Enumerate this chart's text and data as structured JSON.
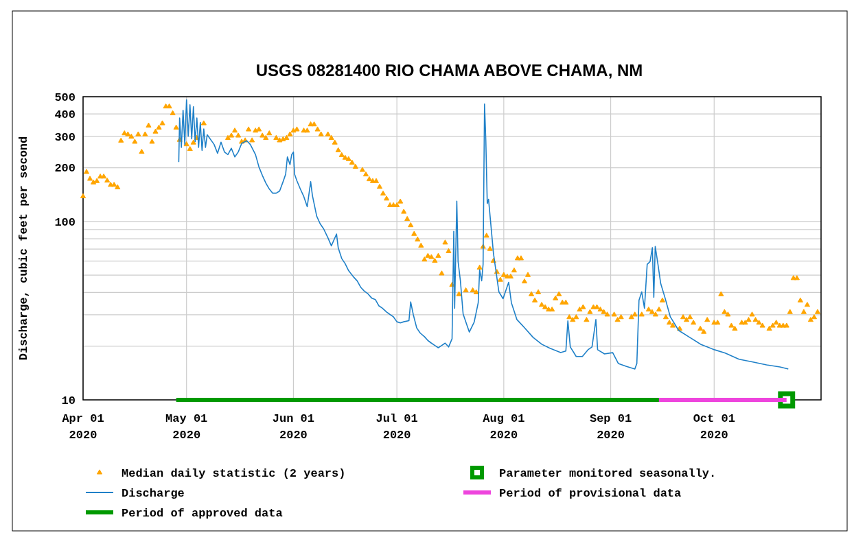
{
  "chart_data": {
    "type": "line",
    "title": "USGS 08281400 RIO CHAMA ABOVE CHAMA, NM",
    "ylabel": "Discharge, cubic feet per second",
    "xlim": [
      "2020-04-01",
      "2020-11-01"
    ],
    "xticks": [
      {
        "value": "2020-04-01",
        "label": "Apr 01\n2020"
      },
      {
        "value": "2020-05-01",
        "label": "May 01\n2020"
      },
      {
        "value": "2020-06-01",
        "label": "Jun 01\n2020"
      },
      {
        "value": "2020-07-01",
        "label": "Jul 01\n2020"
      },
      {
        "value": "2020-08-01",
        "label": "Aug 01\n2020"
      },
      {
        "value": "2020-09-01",
        "label": "Sep 01\n2020"
      },
      {
        "value": "2020-10-01",
        "label": "Oct 01\n2020"
      }
    ],
    "ylim": [
      10,
      500
    ],
    "log": true,
    "yticks": [
      10,
      {
        "value": 20,
        "label": null
      },
      {
        "value": 30,
        "label": null
      },
      {
        "value": 40,
        "label": null
      },
      {
        "value": 50,
        "label": null
      },
      {
        "value": 60,
        "label": null
      },
      {
        "value": 70,
        "label": null
      },
      {
        "value": 80,
        "label": null
      },
      {
        "value": 90,
        "label": null
      },
      100,
      200,
      300,
      400,
      500
    ],
    "grid": true,
    "legend": "bottom",
    "series": [
      {
        "name": "Median daily statistic (2 years)",
        "type": "scatter",
        "marker": "triangle",
        "color": "#ffa500",
        "x": [
          "2020-04-01",
          "2020-04-02",
          "2020-04-03",
          "2020-04-04",
          "2020-04-05",
          "2020-04-06",
          "2020-04-07",
          "2020-04-08",
          "2020-04-09",
          "2020-04-10",
          "2020-04-11",
          "2020-04-12",
          "2020-04-13",
          "2020-04-14",
          "2020-04-15",
          "2020-04-16",
          "2020-04-17",
          "2020-04-18",
          "2020-04-19",
          "2020-04-20",
          "2020-04-21",
          "2020-04-22",
          "2020-04-23",
          "2020-04-24",
          "2020-04-25",
          "2020-04-26",
          "2020-04-27",
          "2020-04-28",
          "2020-04-29",
          "2020-05-01",
          "2020-05-02",
          "2020-05-03",
          "2020-05-04",
          "2020-05-06",
          "2020-05-13",
          "2020-05-14",
          "2020-05-15",
          "2020-05-16",
          "2020-05-17",
          "2020-05-18",
          "2020-05-19",
          "2020-05-20",
          "2020-05-21",
          "2020-05-22",
          "2020-05-23",
          "2020-05-24",
          "2020-05-25",
          "2020-05-27",
          "2020-05-28",
          "2020-05-29",
          "2020-05-30",
          "2020-05-31",
          "2020-06-01",
          "2020-06-02",
          "2020-06-04",
          "2020-06-05",
          "2020-06-06",
          "2020-06-07",
          "2020-06-08",
          "2020-06-09",
          "2020-06-11",
          "2020-06-12",
          "2020-06-13",
          "2020-06-14",
          "2020-06-15",
          "2020-06-16",
          "2020-06-17",
          "2020-06-18",
          "2020-06-19",
          "2020-06-21",
          "2020-06-22",
          "2020-06-23",
          "2020-06-24",
          "2020-06-25",
          "2020-06-26",
          "2020-06-27",
          "2020-06-28",
          "2020-06-29",
          "2020-06-30",
          "2020-07-01",
          "2020-07-02",
          "2020-07-03",
          "2020-07-04",
          "2020-07-05",
          "2020-07-06",
          "2020-07-07",
          "2020-07-08",
          "2020-07-09",
          "2020-07-10",
          "2020-07-11",
          "2020-07-12",
          "2020-07-13",
          "2020-07-14",
          "2020-07-15",
          "2020-07-16",
          "2020-07-17",
          "2020-07-19",
          "2020-07-21",
          "2020-07-23",
          "2020-07-24",
          "2020-07-25",
          "2020-07-26",
          "2020-07-27",
          "2020-07-28",
          "2020-07-29",
          "2020-07-30",
          "2020-07-31",
          "2020-08-01",
          "2020-08-02",
          "2020-08-03",
          "2020-08-04",
          "2020-08-05",
          "2020-08-06",
          "2020-08-07",
          "2020-08-08",
          "2020-08-09",
          "2020-08-10",
          "2020-08-11",
          "2020-08-12",
          "2020-08-13",
          "2020-08-14",
          "2020-08-15",
          "2020-08-16",
          "2020-08-17",
          "2020-08-18",
          "2020-08-19",
          "2020-08-20",
          "2020-08-21",
          "2020-08-22",
          "2020-08-23",
          "2020-08-24",
          "2020-08-25",
          "2020-08-26",
          "2020-08-27",
          "2020-08-28",
          "2020-08-29",
          "2020-08-30",
          "2020-08-31",
          "2020-09-02",
          "2020-09-03",
          "2020-09-04",
          "2020-09-07",
          "2020-09-08",
          "2020-09-10",
          "2020-09-12",
          "2020-09-13",
          "2020-09-14",
          "2020-09-15",
          "2020-09-16",
          "2020-09-17",
          "2020-09-18",
          "2020-09-19",
          "2020-09-21",
          "2020-09-22",
          "2020-09-23",
          "2020-09-24",
          "2020-09-25",
          "2020-09-27",
          "2020-09-28",
          "2020-09-29",
          "2020-10-01",
          "2020-10-02",
          "2020-10-03",
          "2020-10-04",
          "2020-10-05",
          "2020-10-06",
          "2020-10-07",
          "2020-10-09",
          "2020-10-10",
          "2020-10-11",
          "2020-10-12",
          "2020-10-13",
          "2020-10-14",
          "2020-10-15",
          "2020-10-17",
          "2020-10-18",
          "2020-10-19",
          "2020-10-20",
          "2020-10-21",
          "2020-10-22",
          "2020-10-23",
          "2020-10-24",
          "2020-10-25",
          "2020-10-26",
          "2020-10-27",
          "2020-10-28",
          "2020-10-29",
          "2020-10-30",
          "2020-10-31"
        ],
        "values": [
          138,
          189,
          173,
          165,
          168,
          178,
          178,
          169,
          160,
          160,
          155,
          283,
          311,
          307,
          298,
          279,
          307,
          245,
          307,
          344,
          279,
          318,
          335,
          354,
          440,
          440,
          403,
          335,
          286,
          270,
          254,
          276,
          293,
          354,
          293,
          302,
          322,
          302,
          279,
          284,
          327,
          284,
          322,
          327,
          302,
          293,
          311,
          293,
          284,
          288,
          293,
          307,
          322,
          327,
          322,
          322,
          349,
          349,
          327,
          307,
          307,
          293,
          276,
          250,
          235,
          227,
          223,
          213,
          202,
          194,
          183,
          172,
          168,
          168,
          156,
          143,
          134,
          123,
          123,
          123,
          129,
          113,
          103,
          95,
          85,
          79,
          73,
          61,
          64,
          63,
          60,
          64,
          51,
          76,
          68,
          44,
          39,
          41,
          41,
          40,
          55,
          72,
          83,
          70,
          60,
          52,
          47,
          50,
          49,
          49,
          53,
          62,
          62,
          46,
          50,
          39,
          36,
          40,
          34,
          33,
          32,
          32,
          37,
          39,
          35,
          35,
          29,
          28,
          29,
          32,
          33,
          28,
          31,
          33,
          33,
          32,
          31,
          30,
          30,
          28,
          29,
          29,
          30,
          30,
          32,
          31,
          30,
          32,
          36,
          29,
          27,
          26,
          25,
          29,
          28,
          29,
          27,
          25,
          24,
          28,
          27,
          27,
          39,
          31,
          30,
          26,
          25,
          27,
          27,
          28,
          30,
          28,
          27,
          26,
          25,
          26,
          27,
          26,
          26,
          26,
          31,
          48,
          48,
          36,
          31,
          34,
          28,
          29,
          31
        ]
      },
      {
        "name": "Discharge",
        "color": "#1f80c8",
        "x": [
          "2020-04-28T18:00",
          "2020-04-29T00:00",
          "2020-04-29T12:00",
          "2020-04-30T00:00",
          "2020-04-30T12:00",
          "2020-05-01T00:00",
          "2020-05-01T12:00",
          "2020-05-02T00:00",
          "2020-05-02T12:00",
          "2020-05-03T00:00",
          "2020-05-03T12:00",
          "2020-05-04T00:00",
          "2020-05-04T12:00",
          "2020-05-05T00:00",
          "2020-05-05T12:00",
          "2020-05-06T00:00",
          "2020-05-06T12:00",
          "2020-05-07T00:00",
          "2020-05-09T00:00",
          "2020-05-10T00:00",
          "2020-05-11T00:00",
          "2020-05-12T00:00",
          "2020-05-13T00:00",
          "2020-05-14T00:00",
          "2020-05-15T00:00",
          "2020-05-16T00:00",
          "2020-05-17T00:00",
          "2020-05-18T12:00",
          "2020-05-19T12:00",
          "2020-05-21T00:00",
          "2020-05-22T00:00",
          "2020-05-23T00:00",
          "2020-05-24T00:00",
          "2020-05-25T00:00",
          "2020-05-26T00:00",
          "2020-05-27T00:00",
          "2020-05-28T00:00",
          "2020-05-29T00:00",
          "2020-05-29T18:00",
          "2020-05-30T06:00",
          "2020-05-31T00:00",
          "2020-05-31T12:00",
          "2020-06-01T00:00",
          "2020-06-01T08:00",
          "2020-06-02T00:00",
          "2020-06-03T00:00",
          "2020-06-04T00:00",
          "2020-06-05T00:00",
          "2020-06-06T00:00",
          "2020-06-06T12:00",
          "2020-06-07T18:00",
          "2020-06-08T18:00",
          "2020-06-09T18:00",
          "2020-06-11T00:00",
          "2020-06-12T00:00",
          "2020-06-13T12:00",
          "2020-06-14T00:00",
          "2020-06-15T00:00",
          "2020-06-16T00:00",
          "2020-06-17T00:00",
          "2020-06-18T12:00",
          "2020-06-19T12:00",
          "2020-06-20T12:00",
          "2020-06-21T12:00",
          "2020-06-22T12:00",
          "2020-06-23T18:00",
          "2020-06-24T18:00",
          "2020-06-25T18:00",
          "2020-06-26T18:00",
          "2020-06-28T00:00",
          "2020-06-29T00:00",
          "2020-06-30T00:00",
          "2020-07-01T00:00",
          "2020-07-02T00:00",
          "2020-07-03T00:00",
          "2020-07-04T12:00",
          "2020-07-05T00:00",
          "2020-07-05T18:00",
          "2020-07-06T18:00",
          "2020-07-07T18:00",
          "2020-07-09T00:00",
          "2020-07-10T00:00",
          "2020-07-11T00:00",
          "2020-07-12T00:00",
          "2020-07-13T00:00",
          "2020-07-14T00:00",
          "2020-07-15T00:00",
          "2020-07-16T00:00",
          "2020-07-17T00:00",
          "2020-07-17T12:00",
          "2020-07-17T18:00",
          "2020-07-18T09:00",
          "2020-07-18T18:00",
          "2020-07-19T10:00",
          "2020-07-20T05:00",
          "2020-07-21T07:00",
          "2020-07-22T00:00",
          "2020-07-23T10:00",
          "2020-07-24T14:00",
          "2020-07-25T00:00",
          "2020-07-25T14:00",
          "2020-07-26T00:00",
          "2020-07-26T10:00",
          "2020-07-26T19:00",
          "2020-07-27T05:00",
          "2020-07-27T14:00",
          "2020-07-28T05:00",
          "2020-07-29T00:00",
          "2020-07-30T14:00",
          "2020-07-31T19:00",
          "2020-08-02T10:00",
          "2020-08-03T05:00",
          "2020-08-04T19:00",
          "2020-08-07T00:00",
          "2020-08-09T12:00",
          "2020-08-12T00:00",
          "2020-08-14T07:00",
          "2020-08-17T12:00",
          "2020-08-19T00:00",
          "2020-08-19T14:00",
          "2020-08-20T07:00",
          "2020-08-22T00:00",
          "2020-08-23T19:00",
          "2020-08-25T10:00",
          "2020-08-26T14:00",
          "2020-08-27T17:00",
          "2020-08-28T05:00",
          "2020-08-30T05:00",
          "2020-09-01T14:00",
          "2020-09-03T05:00",
          "2020-09-05T14:00",
          "2020-09-08T00:00",
          "2020-09-08T14:00",
          "2020-09-09T05:00",
          "2020-09-10T00:00",
          "2020-09-10T19:00",
          "2020-09-11T14:00",
          "2020-09-12T10:00",
          "2020-09-13T02:00",
          "2020-09-13T12:00",
          "2020-09-13T22:00",
          "2020-09-14T17:00",
          "2020-09-15T12:00",
          "2020-09-16T17:00",
          "2020-09-18T07:00",
          "2020-09-20T17:00",
          "2020-09-23T22:00",
          "2020-09-27T02:00",
          "2020-10-01T02:00",
          "2020-10-04T05:00",
          "2020-10-08T05:00",
          "2020-10-12T05:00",
          "2020-10-16T05:00",
          "2020-10-20T02:00",
          "2020-10-22T12:00"
        ],
        "values": [
          215,
          380,
          260,
          420,
          270,
          480,
          300,
          450,
          290,
          440,
          280,
          380,
          260,
          359,
          250,
          330,
          260,
          306,
          270,
          241,
          278,
          245,
          237,
          257,
          230,
          245,
          274,
          283,
          270,
          237,
          202,
          181,
          164,
          152,
          144,
          144,
          148,
          167,
          184,
          230,
          208,
          237,
          245,
          184,
          169,
          152,
          138,
          121,
          167,
          140,
          107,
          97,
          91,
          81,
          73,
          85,
          71,
          62,
          58,
          53,
          48.7,
          46.4,
          42.8,
          40.8,
          39.5,
          37.1,
          36.5,
          33.7,
          32.7,
          31.1,
          30.1,
          29.2,
          27.4,
          27,
          27.4,
          27.8,
          35.4,
          30.1,
          25.3,
          23.7,
          22.6,
          21.5,
          20.8,
          20.2,
          19.6,
          20.2,
          20.8,
          19.8,
          22,
          88,
          32.6,
          130,
          59.6,
          46.5,
          30.3,
          26.3,
          24,
          27.3,
          35,
          53.6,
          46.5,
          57.5,
          455,
          285,
          126,
          133,
          98,
          66.4,
          40.3,
          36.9,
          45.6,
          35,
          28.2,
          25.4,
          22.4,
          20.5,
          19.5,
          18.4,
          18.8,
          27.7,
          19.8,
          17.5,
          17.5,
          19.1,
          19.8,
          28.2,
          19.1,
          18.1,
          18.4,
          16,
          15.4,
          14.9,
          16,
          36.2,
          40.3,
          32.6,
          57.5,
          59.6,
          71.3,
          37.6,
          72.5,
          57.5,
          44.9,
          37.6,
          29.2,
          24.5,
          22.4,
          20.5,
          19.1,
          18.3,
          16.9,
          16.3,
          15.7,
          15.3,
          14.9
        ]
      },
      {
        "name": "Period of approved data",
        "color": "#009900",
        "x": [
          "2020-04-28",
          "2020-09-15"
        ],
        "values": [
          10,
          10
        ]
      },
      {
        "name": "Parameter monitored seasonally.",
        "type": "scatter",
        "marker": "square",
        "color": "#009900",
        "x": [
          "2020-10-22"
        ],
        "values": [
          10
        ]
      },
      {
        "name": "Period of provisional data",
        "color": "#ee44dd",
        "x": [
          "2020-09-15",
          "2020-10-22"
        ],
        "values": [
          10,
          10
        ]
      }
    ]
  }
}
